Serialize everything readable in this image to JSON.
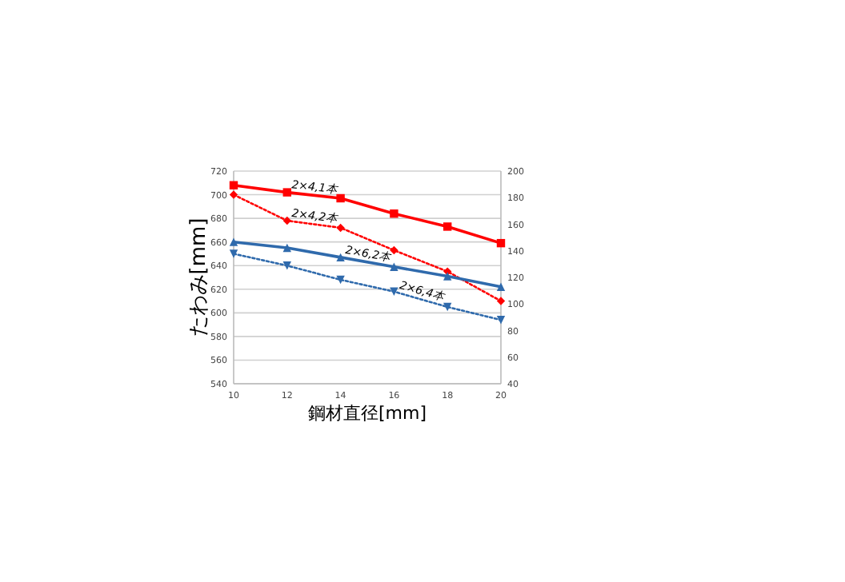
{
  "chart_data": {
    "type": "line",
    "xlabel": "鋼材直径[mm]",
    "ylabel": "たわみ[mm]",
    "x": [
      10,
      12,
      14,
      16,
      18,
      20
    ],
    "xlim": [
      10,
      20
    ],
    "xticks": [
      10,
      12,
      14,
      16,
      18,
      20
    ],
    "ylim": [
      540,
      720
    ],
    "yticks": [
      540,
      560,
      580,
      600,
      620,
      640,
      660,
      680,
      700,
      720
    ],
    "y2lim": [
      40,
      200
    ],
    "y2ticks": [
      40,
      60,
      80,
      100,
      120,
      140,
      160,
      180,
      200
    ],
    "grid": "y",
    "series": [
      {
        "name": "2×4,1本",
        "color": "#ff0000",
        "line_style": "solid",
        "marker": "square",
        "values": [
          708,
          702,
          697,
          684,
          673,
          659
        ]
      },
      {
        "name": "2×4,2本",
        "color": "#ff0000",
        "line_style": "dotted",
        "marker": "diamond",
        "values": [
          700,
          678,
          672,
          653,
          635,
          610
        ]
      },
      {
        "name": "2×6,2本",
        "color": "#2f6aac",
        "line_style": "solid",
        "marker": "triangle",
        "values": [
          660,
          655,
          647,
          639,
          631,
          622
        ]
      },
      {
        "name": "2×6,4本",
        "color": "#2f6aac",
        "line_style": "dotted",
        "marker": "triangle-down",
        "values": [
          650,
          640,
          628,
          618,
          605,
          594
        ]
      }
    ]
  }
}
